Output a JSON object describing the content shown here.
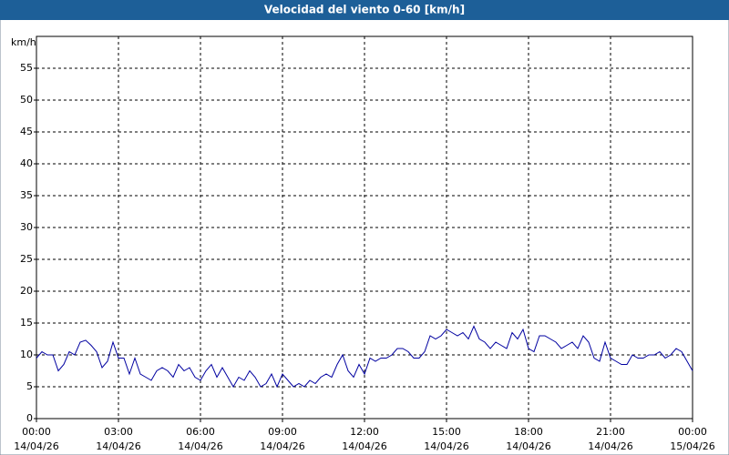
{
  "chart_data": {
    "type": "line",
    "title": "Velocidad del viento 0-60 [km/h]",
    "y_label": "km/h",
    "x": [
      0,
      0.2,
      0.4,
      0.6,
      0.8,
      1,
      1.2,
      1.4,
      1.6,
      1.8,
      2,
      2.2,
      2.4,
      2.6,
      2.8,
      3,
      3.2,
      3.4,
      3.6,
      3.8,
      4,
      4.2,
      4.4,
      4.6,
      4.8,
      5,
      5.2,
      5.4,
      5.6,
      5.8,
      6,
      6.2,
      6.4,
      6.6,
      6.8,
      7,
      7.2,
      7.4,
      7.6,
      7.8,
      8,
      8.2,
      8.4,
      8.6,
      8.8,
      9,
      9.2,
      9.4,
      9.6,
      9.8,
      10,
      10.2,
      10.4,
      10.6,
      10.8,
      11,
      11.2,
      11.4,
      11.6,
      11.8,
      12,
      12.2,
      12.4,
      12.6,
      12.8,
      13,
      13.2,
      13.4,
      13.6,
      13.8,
      14,
      14.2,
      14.4,
      14.6,
      14.8,
      15,
      15.2,
      15.4,
      15.6,
      15.8,
      16,
      16.2,
      16.4,
      16.6,
      16.8,
      17,
      17.2,
      17.4,
      17.6,
      17.8,
      18,
      18.2,
      18.4,
      18.6,
      18.8,
      19,
      19.2,
      19.4,
      19.6,
      19.8,
      20,
      20.2,
      20.4,
      20.6,
      20.8,
      21,
      21.2,
      21.4,
      21.6,
      21.8,
      22,
      22.2,
      22.4,
      22.6,
      22.8,
      23,
      23.2,
      23.4,
      23.6,
      23.8,
      24
    ],
    "series": [
      {
        "name": "Velocidad del viento",
        "color": "#0000a0",
        "values": [
          9.5,
          10.5,
          10,
          10,
          7.5,
          8.5,
          10.5,
          10,
          12,
          12.3,
          11.5,
          10.5,
          8,
          9,
          12,
          9.5,
          9.5,
          7,
          9.5,
          7,
          6.5,
          6,
          7.5,
          8,
          7.5,
          6.5,
          8.5,
          7.5,
          8,
          6.5,
          6,
          7.5,
          8.5,
          6.5,
          8,
          6.5,
          5,
          6.5,
          6,
          7.5,
          6.5,
          5,
          5.5,
          7,
          5,
          7,
          6,
          5,
          5.5,
          5,
          6,
          5.5,
          6.5,
          7,
          6.5,
          8.5,
          10,
          7.5,
          6.5,
          8.5,
          7,
          9.5,
          9,
          9.5,
          9.5,
          10,
          11,
          11,
          10.5,
          9.5,
          9.5,
          10.5,
          13,
          12.5,
          13,
          14,
          13.5,
          13,
          13.5,
          12.5,
          14.5,
          12.5,
          12,
          11,
          12,
          11.5,
          11,
          13.5,
          12.5,
          14,
          11,
          10.5,
          13,
          13,
          12.5,
          12,
          11,
          11.5,
          12,
          11,
          13,
          12,
          9.5,
          9,
          12,
          9.5,
          9,
          8.5,
          8.5,
          10,
          9.5,
          9.5,
          10,
          10,
          10.5,
          9.5,
          10,
          11,
          10.5,
          9,
          7.5
        ]
      }
    ],
    "xlim": [
      0,
      24
    ],
    "xticks": [
      {
        "value": 0,
        "label": "00:00"
      },
      {
        "value": 3,
        "label": "03:00"
      },
      {
        "value": 6,
        "label": "06:00"
      },
      {
        "value": 9,
        "label": "09:00"
      },
      {
        "value": 12,
        "label": "12:00"
      },
      {
        "value": 15,
        "label": "15:00"
      },
      {
        "value": 18,
        "label": "18:00"
      },
      {
        "value": 21,
        "label": "21:00"
      },
      {
        "value": 24,
        "label": "00:00"
      }
    ],
    "xtick_dates": [
      "14/04/26",
      "14/04/26",
      "14/04/26",
      "14/04/26",
      "14/04/26",
      "14/04/26",
      "14/04/26",
      "14/04/26",
      "15/04/26"
    ],
    "ylim": [
      0,
      60
    ],
    "yticks": [
      0,
      5,
      10,
      15,
      20,
      25,
      30,
      35,
      40,
      45,
      50,
      55
    ],
    "grid": true
  }
}
